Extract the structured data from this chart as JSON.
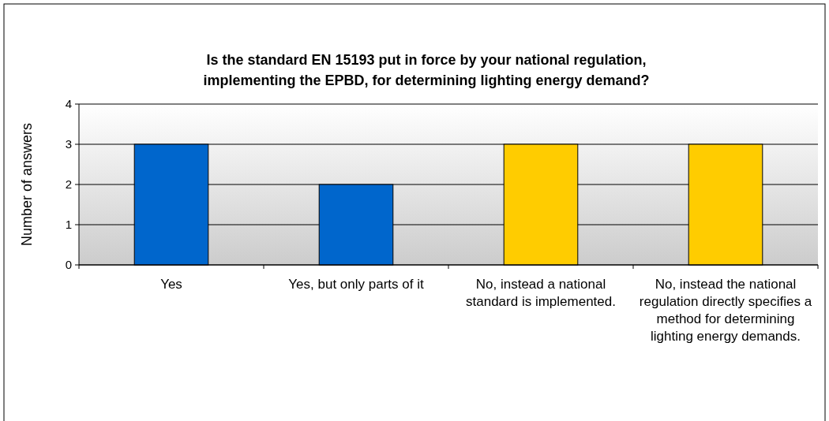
{
  "chart_data": {
    "type": "bar",
    "title": "Is the standard EN 15193 put in force by your national regulation, implementing the EPBD, for determining lighting energy demand?",
    "ylabel": "Number of answers",
    "categories": [
      "Yes",
      "Yes, but only parts of it",
      "No, instead a national standard is implemented.",
      "No, instead the national regulation directly specifies a method for determining lighting energy demands."
    ],
    "values": [
      3,
      2,
      3,
      3
    ],
    "colors": [
      "#0066cc",
      "#0066cc",
      "#ffcc00",
      "#ffcc00"
    ],
    "ylim": [
      0,
      4
    ],
    "yticks": [
      0,
      1,
      2,
      3,
      4
    ],
    "grid": "y"
  }
}
